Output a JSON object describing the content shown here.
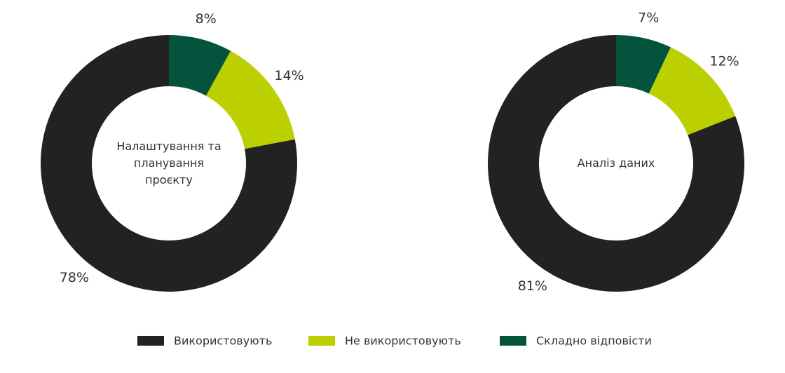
{
  "chart_data": [
    {
      "type": "donut",
      "title": "Налаштування та планування проєкту",
      "categories": [
        "Використовують",
        "Не використовують",
        "Складно відповісти"
      ],
      "values": [
        78,
        14,
        8
      ],
      "value_labels": [
        "78%",
        "14%",
        "8%"
      ],
      "colors": [
        "#222222",
        "#bccf00",
        "#03533d"
      ]
    },
    {
      "type": "donut",
      "title": "Аналіз даних",
      "categories": [
        "Використовують",
        "Не використовують",
        "Складно відповісти"
      ],
      "values": [
        81,
        12,
        7
      ],
      "value_labels": [
        "81%",
        "12%",
        "7%"
      ],
      "colors": [
        "#222222",
        "#bccf00",
        "#03533d"
      ]
    }
  ]
}
